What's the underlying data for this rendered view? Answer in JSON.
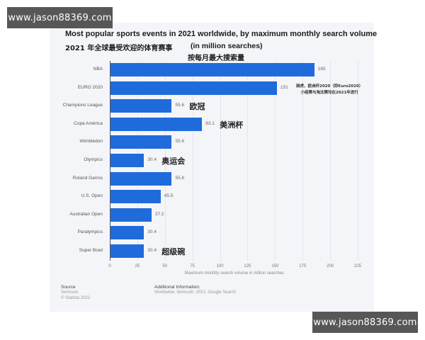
{
  "watermarks": {
    "top": "www.jason88369.com",
    "bottom": "www.jason88369.com"
  },
  "chart_data": {
    "type": "bar",
    "orientation": "horizontal",
    "title": "Most popular sports events in 2021 worldwide, by maximum monthly search volume",
    "subtitle_cn": "2021 年全球最受欢迎的体育赛事",
    "subtitle_unit": "(in million searches)",
    "subtitle_cn2": "按每月最大搜索量",
    "categories": [
      "NBA",
      "EURO 2020",
      "Champions League",
      "Copa América",
      "Wimbledon",
      "Olympics",
      "Roland Garros",
      "U.S. Open",
      "Australian Open",
      "Paralympics",
      "Super Bowl"
    ],
    "values": [
      185,
      151,
      55.6,
      83.1,
      55.6,
      30.4,
      55.6,
      45.5,
      37.2,
      30.4,
      30.4
    ],
    "value_labels": [
      "185",
      "151",
      "55.6",
      "83.1",
      "55.6",
      "30.4",
      "55.6",
      "45.5",
      "37.2",
      "30.4",
      "30.4"
    ],
    "annotations_cn": [
      "",
      "",
      "欧冠",
      "美洲杯",
      "",
      "奥运会",
      "",
      "",
      "",
      "",
      "超级碗"
    ],
    "euro_note": [
      "骑虎、欧洲杯2020（即Euro2020）",
      "小组赛与淘汰赛均在2021年进行"
    ],
    "xlabel": "Maximum monthly search volume in million searches",
    "ylabel": "",
    "xlim": [
      0,
      225
    ],
    "xticks": [
      "0",
      "25",
      "50",
      "75",
      "100",
      "125",
      "150",
      "175",
      "200",
      "225"
    ],
    "grid": true,
    "bar_color": "#1f6bdb",
    "legend": null
  },
  "footer": {
    "source_heading": "Source",
    "source_lines": [
      "Semrush",
      "© Statista 2022"
    ],
    "additional_heading": "Additional Information:",
    "additional_text": "Worldwide; Semrush; 2021; Google Search"
  }
}
